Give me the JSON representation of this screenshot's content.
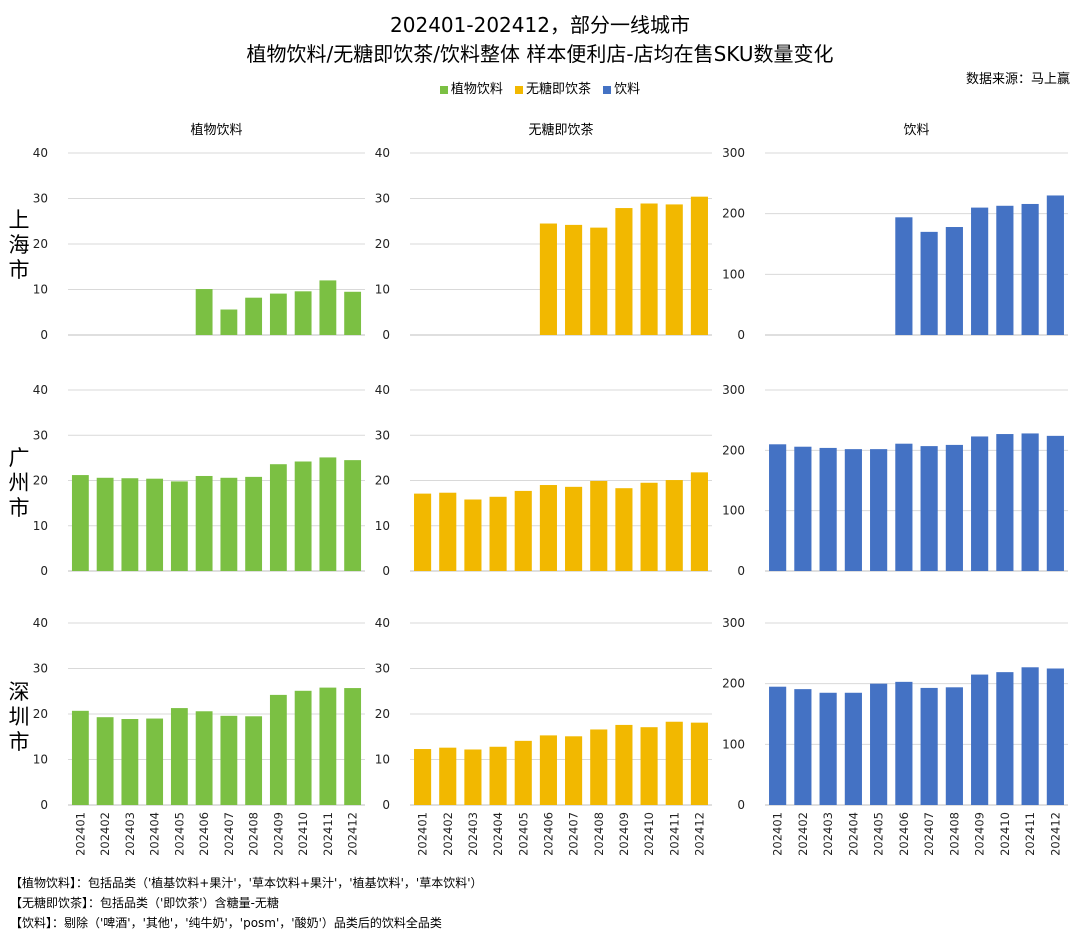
{
  "title_line1": "202401-202412，部分一线城市",
  "title_line2": "植物饮料/无糖即饮茶/饮料整体 样本便利店-店均在售SKU数量变化",
  "source": "数据来源：马上赢",
  "legend": [
    {
      "label": "植物饮料",
      "color": "#7BC043"
    },
    {
      "label": "无糖即饮茶",
      "color": "#F2B800"
    },
    {
      "label": "饮料",
      "color": "#4472C4"
    }
  ],
  "row_labels": [
    "上海市",
    "广州市",
    "深圳市"
  ],
  "notes": [
    "【植物饮料】：包括品类（'植基饮料+果汁'，'草本饮料+果汁'，'植基饮料'，'草本饮料'）",
    "【无糖即饮茶】：包括品类（'即饮茶'）含糖量-无糖",
    "【饮料】：剔除（'啤酒'，'其他'，'纯牛奶'，'posm'，'酸奶'）品类后的饮料全品类"
  ],
  "chart_data": {
    "type": "bar",
    "categories": [
      "202401",
      "202402",
      "202403",
      "202404",
      "202405",
      "202406",
      "202407",
      "202408",
      "202409",
      "202410",
      "202411",
      "202412"
    ],
    "columns": [
      {
        "title": "植物饮料",
        "color": "#7BC043",
        "ylim": [
          0,
          40
        ],
        "yticks": [
          0,
          10,
          20,
          30,
          40
        ]
      },
      {
        "title": "无糖即饮茶",
        "color": "#F2B800",
        "ylim": [
          0,
          40
        ],
        "yticks": [
          0,
          10,
          20,
          30,
          40
        ]
      },
      {
        "title": "饮料",
        "color": "#4472C4",
        "ylim": [
          0,
          300
        ],
        "yticks": [
          0,
          100,
          200,
          300
        ]
      }
    ],
    "grid": true,
    "legend_position": "top",
    "rows": [
      {
        "city": "上海市",
        "series": [
          {
            "name": "植物饮料",
            "values": [
              null,
              null,
              null,
              null,
              null,
              10.1,
              5.6,
              8.2,
              9.1,
              9.6,
              12.0,
              9.5
            ]
          },
          {
            "name": "无糖即饮茶",
            "values": [
              null,
              null,
              null,
              null,
              null,
              24.5,
              24.2,
              23.6,
              27.9,
              28.9,
              28.7,
              30.4
            ]
          },
          {
            "name": "饮料",
            "values": [
              null,
              null,
              null,
              null,
              null,
              194,
              170,
              178,
              210,
              213,
              216,
              230
            ]
          }
        ]
      },
      {
        "city": "广州市",
        "series": [
          {
            "name": "植物饮料",
            "values": [
              21.2,
              20.6,
              20.5,
              20.4,
              19.8,
              21.0,
              20.6,
              20.8,
              23.6,
              24.2,
              25.1,
              24.5
            ]
          },
          {
            "name": "无糖即饮茶",
            "values": [
              17.1,
              17.3,
              15.8,
              16.4,
              17.7,
              19.0,
              18.6,
              19.9,
              18.3,
              19.5,
              20.1,
              21.8
            ]
          },
          {
            "name": "饮料",
            "values": [
              210,
              206,
              204,
              202,
              202,
              211,
              207,
              209,
              223,
              227,
              228,
              224
            ]
          }
        ]
      },
      {
        "city": "深圳市",
        "series": [
          {
            "name": "植物饮料",
            "values": [
              20.7,
              19.3,
              18.9,
              19.0,
              21.3,
              20.6,
              19.6,
              19.5,
              24.2,
              25.1,
              25.8,
              25.7
            ]
          },
          {
            "name": "无糖即饮茶",
            "values": [
              12.3,
              12.6,
              12.2,
              12.8,
              14.1,
              15.3,
              15.1,
              16.6,
              17.6,
              17.1,
              18.3,
              18.1
            ]
          },
          {
            "name": "饮料",
            "values": [
              195,
              191,
              185,
              185,
              200,
              203,
              193,
              194,
              215,
              219,
              227,
              225
            ]
          }
        ]
      }
    ]
  }
}
